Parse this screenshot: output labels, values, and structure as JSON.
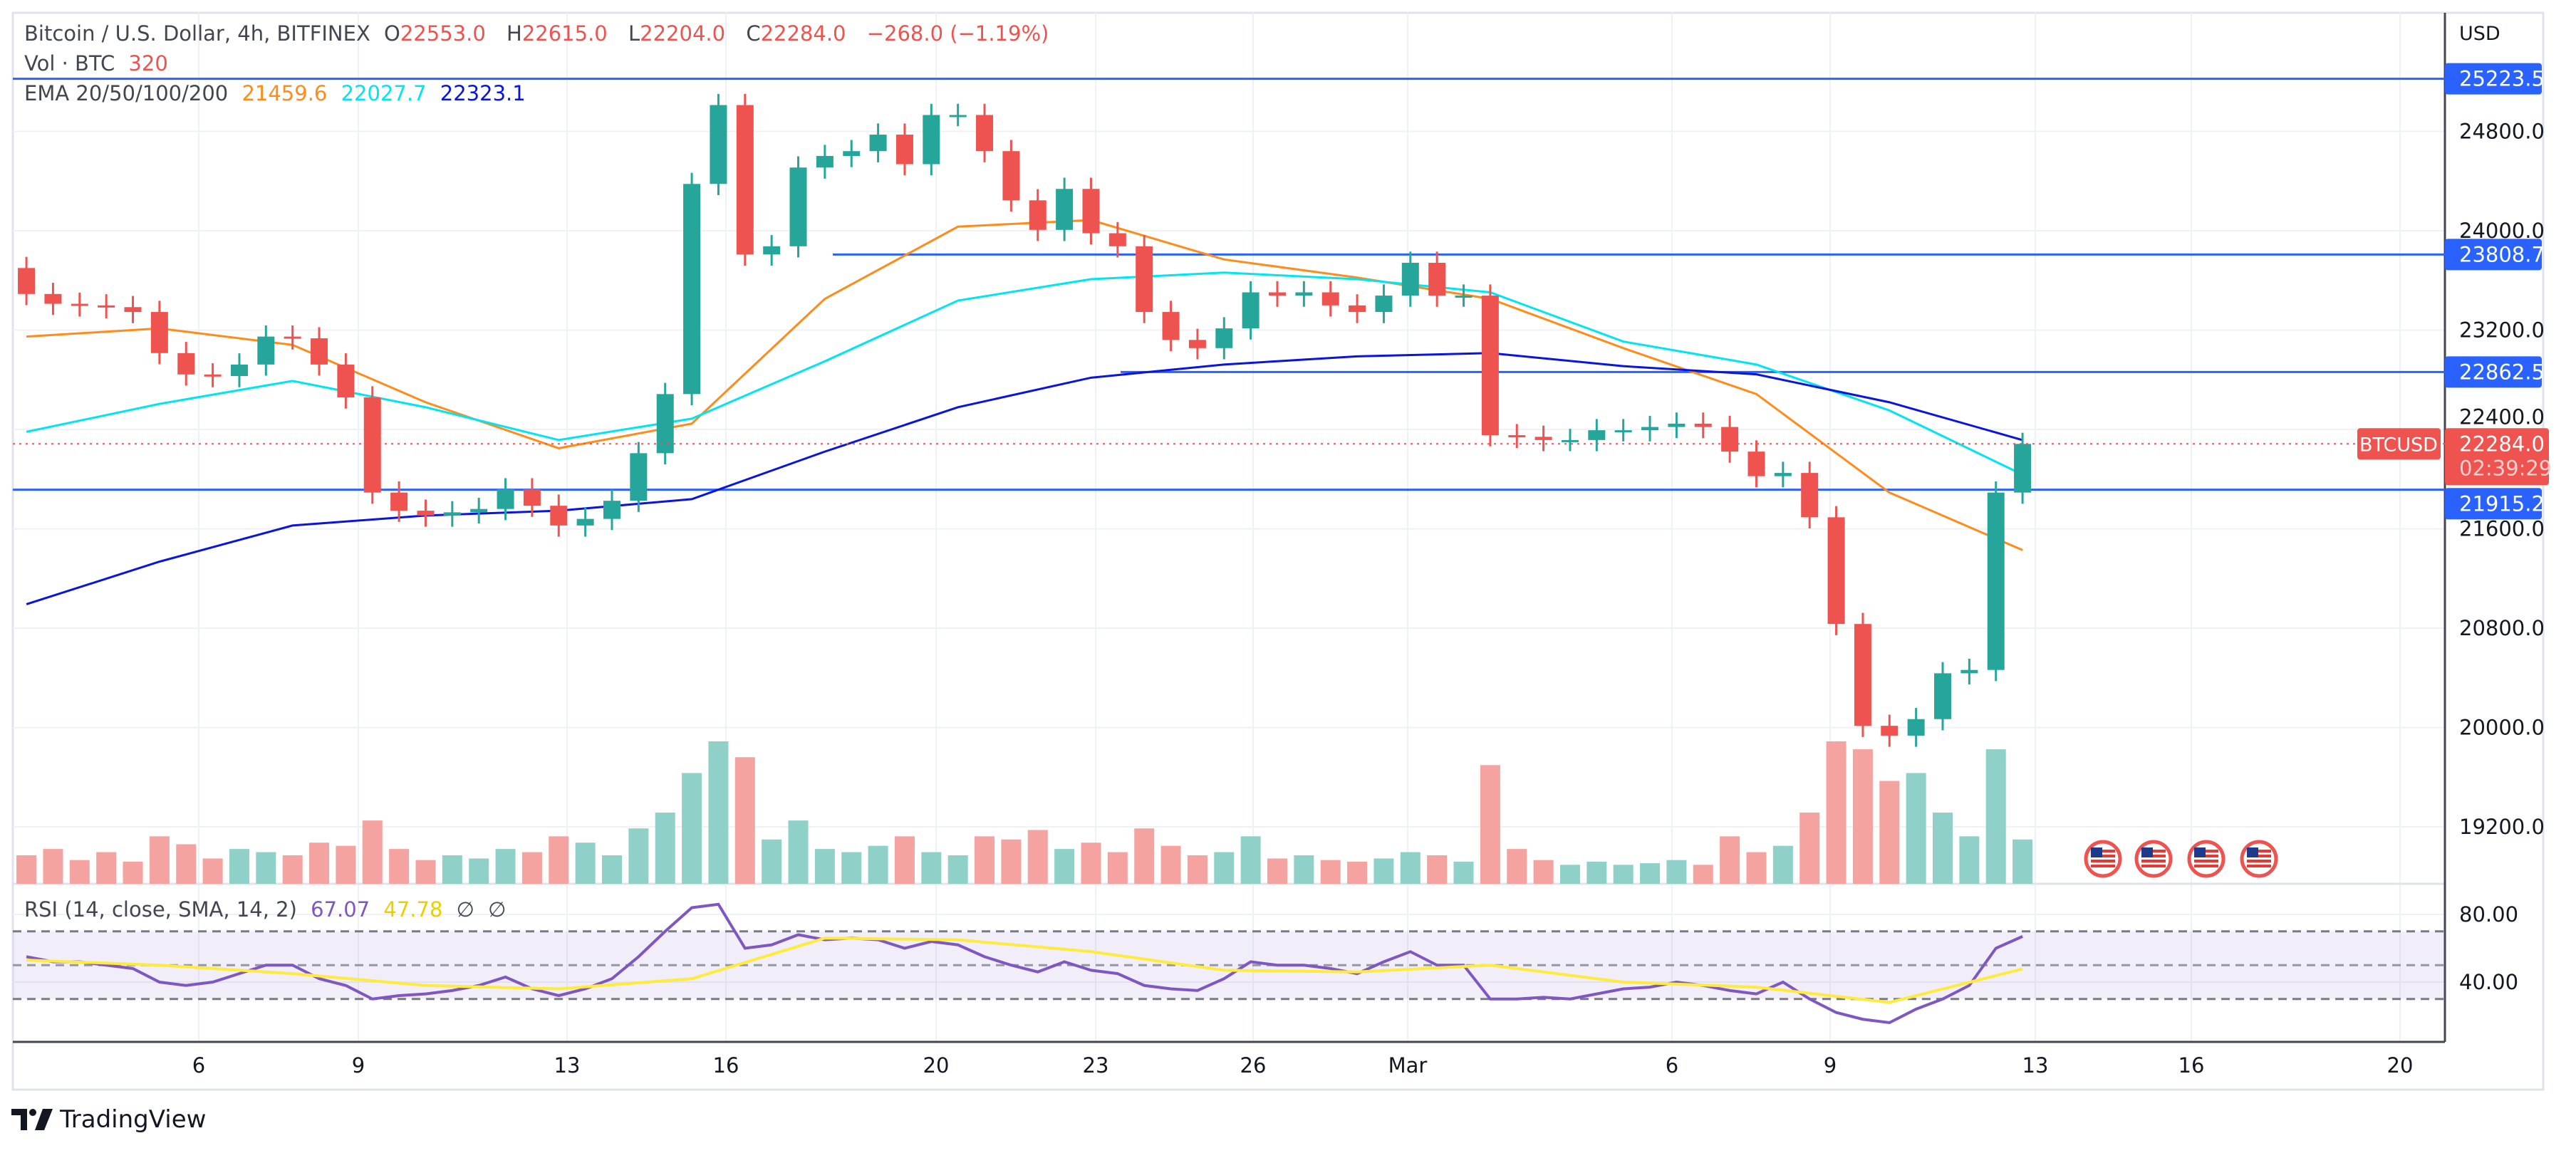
{
  "legend": {
    "symbol": "Bitcoin / U.S. Dollar, 4h, BITFINEX",
    "o_label": "O",
    "o": "22553.0",
    "h_label": "H",
    "h": "22615.0",
    "l_label": "L",
    "l": "22204.0",
    "c_label": "C",
    "c": "22284.0",
    "change": "−268.0 (−1.19%)",
    "vol_label": "Vol · BTC",
    "vol": "320",
    "ema_label": "EMA 20/50/100/200",
    "ema_values": [
      "21459.6",
      "22027.7",
      "22323.1"
    ],
    "rsi_label": "RSI (14, close, SMA, 14, 2)",
    "rsi_value": "67.07",
    "rsi_sma_value": "47.78",
    "rsi_extra": [
      "∅",
      "∅"
    ]
  },
  "price_axis": {
    "currency": "USD",
    "ticks": [
      "24800.0",
      "24000.0",
      "23200.0",
      "22400.0",
      "21600.0",
      "20800.0",
      "20000.0",
      "19200.0"
    ],
    "levels": [
      "25223.5",
      "23808.7",
      "22862.5",
      "21915.2"
    ],
    "current_symbol": "BTCUSD",
    "current_price": "22284.0",
    "countdown": "02:39:29"
  },
  "rsi_axis": {
    "ticks": [
      "80.00",
      "40.00"
    ]
  },
  "time_axis": {
    "labels": [
      "6",
      "9",
      "13",
      "16",
      "20",
      "23",
      "26",
      "Mar",
      "6",
      "9",
      "13",
      "16",
      "20"
    ]
  },
  "colors": {
    "up": "#26a69a",
    "down": "#ef5350",
    "up_vol": "#8fd1c9",
    "down_vol": "#f5a3a1",
    "ema20": "#ff8c1a",
    "ema50": "#00e5f0",
    "ema200": "#0a14e0",
    "level": "#2962ff",
    "rsi": "#7e57c2",
    "rsi_sma": "#ffeb3b"
  },
  "icons": {
    "event_flags": [
      "us-flag-icon",
      "us-flag-icon",
      "us-flag-icon",
      "us-flag-icon"
    ]
  },
  "brand": "TradingView",
  "chart_data": {
    "type": "candlestick",
    "ylim": [
      18900,
      25500
    ],
    "first_open": 23700,
    "closes": [
      23491,
      23412,
      23399,
      23385,
      23346,
      23015,
      22843,
      22830,
      22923,
      23148,
      23134,
      22923,
      22658,
      21892,
      21746,
      21707,
      21733,
      21760,
      21918,
      21786,
      21627,
      21680,
      21826,
      22209,
      22685,
      24377,
      25012,
      23809,
      23875,
      24509,
      24602,
      24641,
      24774,
      24536,
      24932,
      24932,
      24641,
      24245,
      24007,
      24337,
      23980,
      23875,
      23346,
      23121,
      23055,
      23214,
      23504,
      23478,
      23504,
      23399,
      23346,
      23478,
      23742,
      23478,
      23478,
      22354,
      22341,
      22315,
      22315,
      22394,
      22394,
      22420,
      22447,
      22420,
      22222,
      22024,
      22050,
      21693,
      20834,
      20014,
      19935,
      20068,
      20437,
      20464,
      21892,
      22284
    ],
    "volume": [
      18,
      22,
      15,
      20,
      14,
      30,
      25,
      16,
      22,
      20,
      18,
      26,
      24,
      40,
      22,
      15,
      18,
      16,
      22,
      20,
      30,
      26,
      18,
      35,
      45,
      70,
      90,
      80,
      28,
      40,
      22,
      20,
      24,
      30,
      20,
      18,
      30,
      28,
      34,
      22,
      26,
      20,
      35,
      24,
      18,
      20,
      30,
      16,
      18,
      15,
      14,
      16,
      20,
      18,
      14,
      75,
      22,
      15,
      12,
      14,
      12,
      13,
      15,
      12,
      30,
      20,
      24,
      45,
      90,
      85,
      65,
      70,
      45,
      30,
      85,
      28
    ],
    "ema": [
      {
        "label": "20",
        "values": [
          23148,
          23214,
          23081,
          22619,
          22249,
          22447,
          23452,
          24033,
          24086,
          23769,
          23623,
          23452,
          23055,
          22685,
          21892,
          21429
        ]
      },
      {
        "label": "50",
        "values": [
          22381,
          22606,
          22791,
          22579,
          22315,
          22487,
          22949,
          23438,
          23610,
          23663,
          23610,
          23504,
          23108,
          22923,
          22553,
          22037
        ]
      },
      {
        "label": "200",
        "values": [
          20993,
          21336,
          21627,
          21707,
          21746,
          21839,
          22222,
          22579,
          22817,
          22923,
          22989,
          23015,
          22910,
          22844,
          22619,
          22315
        ]
      }
    ],
    "rsi": {
      "values": [
        55,
        52,
        52,
        50,
        48,
        40,
        38,
        40,
        45,
        50,
        50,
        42,
        38,
        30,
        32,
        33,
        35,
        38,
        43,
        36,
        32,
        36,
        42,
        55,
        70,
        84,
        86,
        60,
        62,
        68,
        65,
        66,
        65,
        60,
        64,
        62,
        55,
        50,
        46,
        52,
        47,
        45,
        38,
        36,
        35,
        42,
        52,
        50,
        50,
        48,
        45,
        52,
        58,
        50,
        50,
        30,
        30,
        31,
        30,
        33,
        36,
        37,
        40,
        38,
        35,
        33,
        40,
        30,
        22,
        18,
        16,
        24,
        30,
        38,
        60,
        67
      ],
      "sma": [
        53,
        50,
        45,
        38,
        36,
        42,
        66,
        65,
        58,
        47,
        46,
        50,
        40,
        37,
        28,
        47.78
      ],
      "bands": [
        70,
        50,
        30
      ],
      "ylim": [
        10,
        90
      ]
    }
  }
}
